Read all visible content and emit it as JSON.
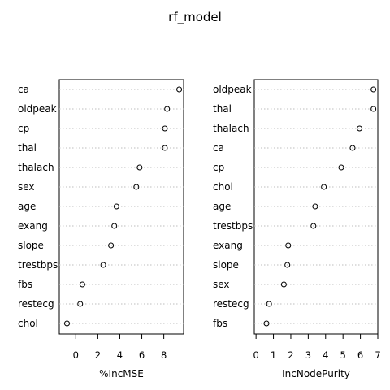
{
  "title": "rf_model",
  "chart_data": [
    {
      "type": "scatter",
      "xlabel": "%IncMSE",
      "xlim": [
        -1.5,
        9.8
      ],
      "xticks": [
        0,
        2,
        4,
        6,
        8
      ],
      "grid": true,
      "categories": [
        "ca",
        "oldpeak",
        "cp",
        "thal",
        "thalach",
        "sex",
        "age",
        "exang",
        "slope",
        "trestbps",
        "fbs",
        "restecg",
        "chol"
      ],
      "values": [
        9.4,
        8.3,
        8.1,
        8.1,
        5.8,
        5.5,
        3.7,
        3.5,
        3.2,
        2.5,
        0.6,
        0.4,
        -0.8
      ]
    },
    {
      "type": "scatter",
      "xlabel": "IncNodePurity",
      "xlim": [
        -0.1,
        7.0
      ],
      "xticks": [
        0,
        1,
        2,
        3,
        4,
        5,
        6,
        7
      ],
      "grid": true,
      "categories": [
        "oldpeak",
        "thal",
        "thalach",
        "ca",
        "cp",
        "chol",
        "age",
        "trestbps",
        "exang",
        "slope",
        "sex",
        "restecg",
        "fbs"
      ],
      "values": [
        6.75,
        6.75,
        5.95,
        5.55,
        4.9,
        3.9,
        3.4,
        3.3,
        1.85,
        1.8,
        1.6,
        0.75,
        0.6
      ]
    }
  ]
}
